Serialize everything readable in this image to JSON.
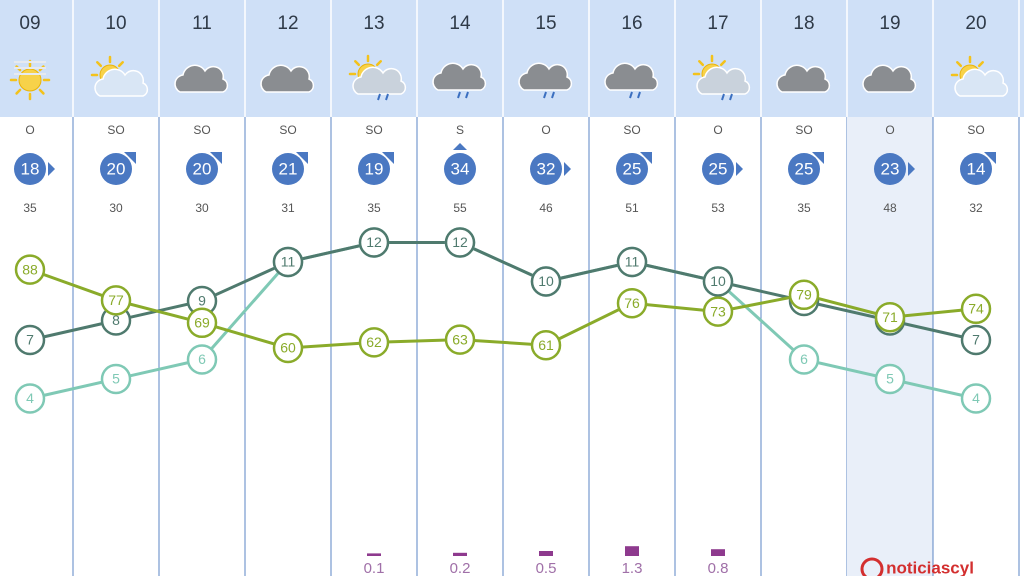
{
  "chart_data": {
    "type": "line",
    "categories": [
      "09",
      "10",
      "11",
      "12",
      "13",
      "14",
      "15",
      "16",
      "17",
      "18",
      "19",
      "20"
    ],
    "wind_direction": [
      "O",
      "SO",
      "SO",
      "SO",
      "SO",
      "S",
      "O",
      "SO",
      "O",
      "SO",
      "O",
      "SO"
    ],
    "wind_speed": [
      18,
      20,
      20,
      21,
      19,
      34,
      32,
      25,
      25,
      25,
      23,
      14
    ],
    "gusts": [
      35,
      30,
      30,
      31,
      35,
      55,
      46,
      51,
      53,
      35,
      48,
      32
    ],
    "series": [
      {
        "color": "#7fc9b5",
        "axis": "temp",
        "values": [
          4,
          5,
          6,
          11,
          12,
          12,
          10,
          11,
          10,
          6,
          5,
          4
        ]
      },
      {
        "color": "#4f7a6e",
        "axis": "temp",
        "values": [
          7,
          8,
          9,
          11,
          12,
          12,
          10,
          11,
          10,
          9,
          8,
          7
        ]
      },
      {
        "color": "#8aab2a",
        "axis": "humidity",
        "values": [
          88,
          77,
          69,
          60,
          62,
          63,
          61,
          76,
          73,
          79,
          71,
          74
        ]
      }
    ],
    "precipitation": [
      null,
      null,
      null,
      null,
      0.1,
      0.2,
      0.5,
      1.3,
      0.8,
      null,
      null,
      null
    ],
    "precipitation_color": "#8e3a8e",
    "highlight_index": 10,
    "logo": "noticiascyl"
  }
}
